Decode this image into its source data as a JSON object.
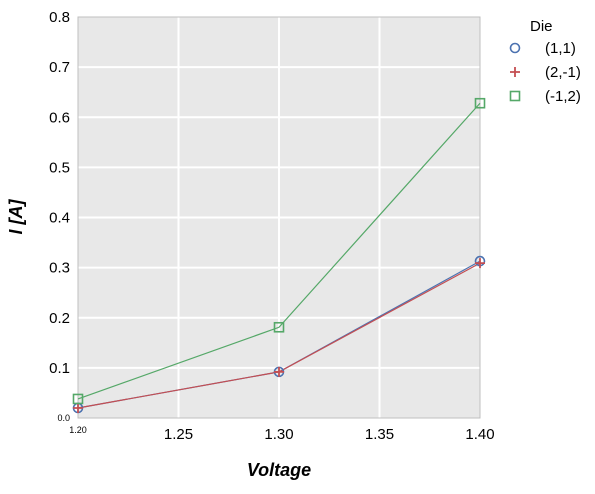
{
  "chart_data": {
    "type": "line",
    "xlabel": "Voltage",
    "ylabel": "I [A]",
    "xlim": [
      1.2,
      1.4
    ],
    "ylim": [
      0.0,
      0.8
    ],
    "x_ticks": [
      1.2,
      1.25,
      1.3,
      1.35,
      1.4
    ],
    "x_tick_labels": [
      "1.20",
      "1.25",
      "1.30",
      "1.35",
      "1.40"
    ],
    "y_ticks": [
      0.0,
      0.1,
      0.2,
      0.3,
      0.4,
      0.5,
      0.6,
      0.7,
      0.8
    ],
    "y_tick_labels": [
      "0.0",
      "0.1",
      "0.2",
      "0.3",
      "0.4",
      "0.5",
      "0.6",
      "0.7",
      "0.8"
    ],
    "grid": true,
    "background": "#e8e8e8",
    "legend_title": "Die",
    "legend_position": "outside-top-right",
    "series": [
      {
        "name": "(1,1)",
        "marker": "circle",
        "color": "#4c72b0",
        "x": [
          1.2,
          1.3,
          1.4
        ],
        "y": [
          0.02,
          0.092,
          0.313
        ]
      },
      {
        "name": "(2,-1)",
        "marker": "plus",
        "color": "#c44e52",
        "x": [
          1.2,
          1.3,
          1.4
        ],
        "y": [
          0.02,
          0.092,
          0.309
        ]
      },
      {
        "name": "(-1,2)",
        "marker": "square",
        "color": "#55a868",
        "x": [
          1.2,
          1.3,
          1.4
        ],
        "y": [
          0.038,
          0.181,
          0.628
        ]
      }
    ]
  }
}
